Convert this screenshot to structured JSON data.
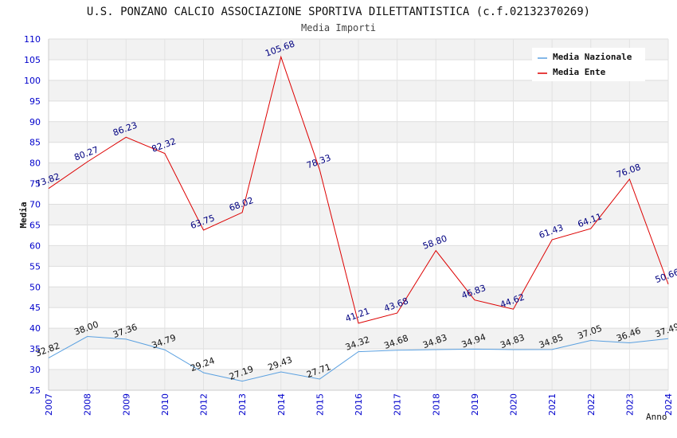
{
  "chart_data": {
    "type": "line",
    "title": "U.S. PONZANO CALCIO ASSOCIAZIONE SPORTIVA DILETTANTISTICA (c.f.02132370269)",
    "subtitle": "Media Importi",
    "xlabel": "Anno",
    "ylabel": "Media",
    "ylim": [
      25,
      110
    ],
    "ytick_step": 5,
    "grid": true,
    "legend_position": "top-right",
    "categories": [
      "2007",
      "2008",
      "2009",
      "2010",
      "2012",
      "2013",
      "2014",
      "2015",
      "2016",
      "2017",
      "2018",
      "2019",
      "2020",
      "2021",
      "2022",
      "2023",
      "2024"
    ],
    "series": [
      {
        "name": "Media Nazionale",
        "color": "#5aa0e0",
        "values": [
          32.82,
          38.0,
          37.36,
          34.79,
          29.24,
          27.19,
          29.43,
          27.71,
          34.32,
          34.68,
          34.83,
          34.94,
          34.83,
          34.85,
          37.05,
          36.46,
          37.49
        ],
        "labels": [
          "32.82",
          "38.00",
          "37.36",
          "34.79",
          "29.24",
          "27.19",
          "29.43",
          "27.71",
          "34.32",
          "34.68",
          "34.83",
          "34.94",
          "34.83",
          "34.85",
          "37.05",
          "36.46",
          "37.49"
        ]
      },
      {
        "name": "Media Ente",
        "color": "#dd0000",
        "values": [
          73.82,
          80.27,
          86.23,
          82.32,
          63.75,
          68.02,
          105.68,
          78.33,
          41.21,
          43.68,
          58.8,
          46.83,
          44.62,
          61.43,
          64.11,
          76.08,
          50.66
        ],
        "labels": [
          "73.82",
          "80.27",
          "86.23",
          "82.32",
          "63.75",
          "68.02",
          "105.68",
          "78.33",
          "41.21",
          "43.68",
          "58.80",
          "46.83",
          "44.62",
          "61.43",
          "64.11",
          "76.08",
          "50.66"
        ]
      }
    ]
  }
}
